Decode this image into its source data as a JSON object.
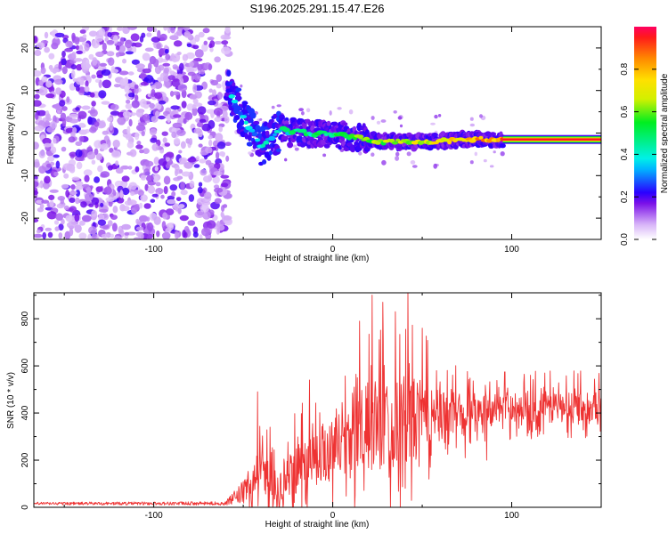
{
  "title": "S196.2025.291.15.47.E26",
  "chart_data": [
    {
      "type": "heatmap",
      "name": "spectrogram",
      "xlabel": "Height of straight line (km)",
      "ylabel": "Frequency (Hz)",
      "xlim": [
        -167,
        150
      ],
      "ylim": [
        -25,
        25
      ],
      "xticks": [
        -100,
        0,
        100
      ],
      "yticks": [
        -20,
        -10,
        0,
        10,
        20
      ],
      "noise_region_x": [
        -167,
        -58
      ],
      "signal_track": [
        {
          "x": -58,
          "y": 10
        },
        {
          "x": -55,
          "y": 8
        },
        {
          "x": -52,
          "y": 5
        },
        {
          "x": -49,
          "y": 3
        },
        {
          "x": -46,
          "y": 1
        },
        {
          "x": -43,
          "y": -1
        },
        {
          "x": -40,
          "y": -3
        },
        {
          "x": -37,
          "y": -2
        },
        {
          "x": -34,
          "y": -1
        },
        {
          "x": -31,
          "y": 0
        },
        {
          "x": -28,
          "y": 1
        },
        {
          "x": -24,
          "y": 0
        },
        {
          "x": -20,
          "y": 0.5
        },
        {
          "x": -15,
          "y": 0
        },
        {
          "x": -10,
          "y": -0.5
        },
        {
          "x": -5,
          "y": 0
        },
        {
          "x": 0,
          "y": -0.5
        },
        {
          "x": 5,
          "y": -0.5
        },
        {
          "x": 10,
          "y": -1
        },
        {
          "x": 15,
          "y": -1
        },
        {
          "x": 20,
          "y": -1.5
        },
        {
          "x": 25,
          "y": -2
        },
        {
          "x": 35,
          "y": -2
        },
        {
          "x": 45,
          "y": -2
        },
        {
          "x": 55,
          "y": -2
        },
        {
          "x": 65,
          "y": -1.8
        },
        {
          "x": 75,
          "y": -1.5
        },
        {
          "x": 85,
          "y": -1.5
        },
        {
          "x": 95,
          "y": -1.5
        },
        {
          "x": 120,
          "y": -1.5
        },
        {
          "x": 150,
          "y": -1.5
        }
      ]
    },
    {
      "type": "line",
      "name": "snr",
      "xlabel": "Height of straight line (km)",
      "ylabel": "SNR (10 * v/v)",
      "xlim": [
        -167,
        150
      ],
      "ylim": [
        0,
        910
      ],
      "xticks": [
        -100,
        0,
        100
      ],
      "yticks": [
        0,
        200,
        400,
        600,
        800
      ],
      "color": "#ee3333",
      "envelope": [
        {
          "x": -167,
          "base": 15,
          "amp": 12
        },
        {
          "x": -60,
          "base": 15,
          "amp": 15
        },
        {
          "x": -48,
          "base": 60,
          "amp": 120
        },
        {
          "x": -43,
          "base": 120,
          "amp": 230
        },
        {
          "x": -38,
          "base": 130,
          "amp": 200
        },
        {
          "x": -30,
          "base": 60,
          "amp": 150
        },
        {
          "x": -20,
          "base": 160,
          "amp": 240
        },
        {
          "x": -10,
          "base": 210,
          "amp": 260
        },
        {
          "x": 0,
          "base": 250,
          "amp": 280
        },
        {
          "x": 10,
          "base": 280,
          "amp": 330
        },
        {
          "x": 20,
          "base": 320,
          "amp": 440
        },
        {
          "x": 30,
          "base": 340,
          "amp": 420
        },
        {
          "x": 40,
          "base": 350,
          "amp": 460
        },
        {
          "x": 50,
          "base": 360,
          "amp": 360
        },
        {
          "x": 60,
          "base": 380,
          "amp": 230
        },
        {
          "x": 70,
          "base": 400,
          "amp": 190
        },
        {
          "x": 80,
          "base": 410,
          "amp": 160
        },
        {
          "x": 90,
          "base": 415,
          "amp": 140
        },
        {
          "x": 100,
          "base": 420,
          "amp": 150
        },
        {
          "x": 120,
          "base": 420,
          "amp": 150
        },
        {
          "x": 150,
          "base": 425,
          "amp": 140
        }
      ],
      "peaks": [
        {
          "x": 22,
          "y": 900
        },
        {
          "x": 28,
          "y": 870
        },
        {
          "x": 35,
          "y": 830
        },
        {
          "x": 42,
          "y": 910
        },
        {
          "x": 50,
          "y": 760
        },
        {
          "x": 15,
          "y": 790
        },
        {
          "x": -42,
          "y": 490
        },
        {
          "x": -35,
          "y": 340
        },
        {
          "x": -13,
          "y": 540
        },
        {
          "x": 74,
          "y": 210
        },
        {
          "x": 86,
          "y": 200
        },
        {
          "x": 58,
          "y": 580
        }
      ]
    }
  ],
  "colorbar": {
    "label": "Normalized spectral amplitude",
    "range": [
      0,
      1
    ],
    "ticks": [
      "0.0",
      "0.2",
      "0.4",
      "0.6",
      "0.8"
    ],
    "tick_values": [
      0,
      0.2,
      0.4,
      0.6,
      0.8
    ]
  }
}
